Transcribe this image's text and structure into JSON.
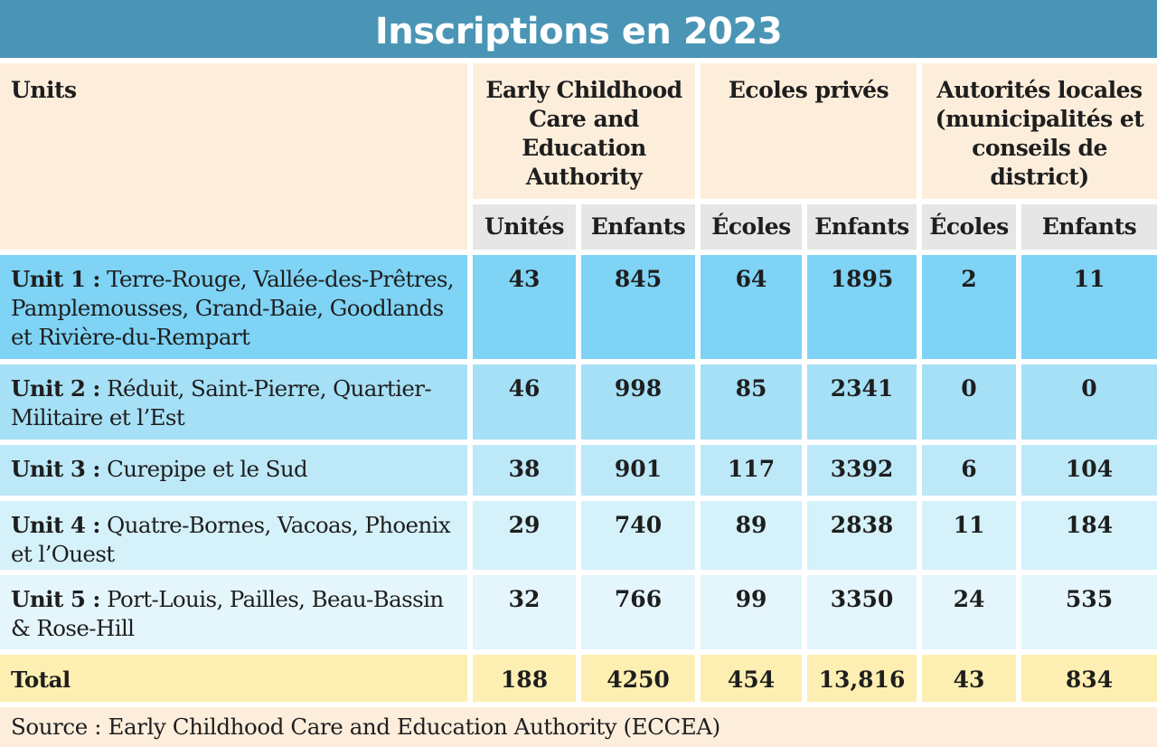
{
  "title": "Inscriptions en 2023",
  "header": {
    "units": "Units",
    "groups": [
      "Early Childhood Care and Education Authority",
      "Ecoles privés",
      "Autorités locales (municipalités et conseils de district)"
    ],
    "subcolumns": [
      "Unités",
      "Enfants",
      "Écoles",
      "Enfants",
      "Écoles",
      "Enfants"
    ]
  },
  "rows": [
    {
      "unit": "Unit 1 :",
      "area": "Terre-Rouge, Vallée-des-Prêtres, Pamplemousses, Grand-Baie, Goodlands et Rivière-du-Rempart",
      "values": [
        "43",
        "845",
        "64",
        "1895",
        "2",
        "11"
      ]
    },
    {
      "unit": "Unit 2 :",
      "area": "Réduit, Saint-Pierre, Quartier-Militaire et l’Est",
      "values": [
        "46",
        "998",
        "85",
        "2341",
        "0",
        "0"
      ]
    },
    {
      "unit": "Unit 3 :",
      "area": "Curepipe et le Sud",
      "values": [
        "38",
        "901",
        "117",
        "3392",
        "6",
        "104"
      ]
    },
    {
      "unit": "Unit 4 :",
      "area": "Quatre-Bornes, Vacoas, Phoenix et l’Ouest",
      "values": [
        "29",
        "740",
        "89",
        "2838",
        "11",
        "184"
      ]
    },
    {
      "unit": "Unit 5 :",
      "area": "Port-Louis, Pailles, Beau-Bassin & Rose-Hill",
      "values": [
        "32",
        "766",
        "99",
        "3350",
        "24",
        "535"
      ]
    }
  ],
  "total": {
    "label": "Total",
    "values": [
      "188",
      "4250",
      "454",
      "13,816",
      "43",
      "834"
    ]
  },
  "source": "Source : Early Childhood Care and Education Authority (ECCEA)",
  "colors": {
    "title_bg": "#4a95b5",
    "header_bg": "#fdeedc",
    "subheader_bg": "#e6e6e6",
    "row_bgs": [
      "#7fd3f5",
      "#a6e0f6",
      "#bde8f8",
      "#d5f1fa",
      "#e4f5fb"
    ],
    "total_bg": "#fdefb1"
  }
}
